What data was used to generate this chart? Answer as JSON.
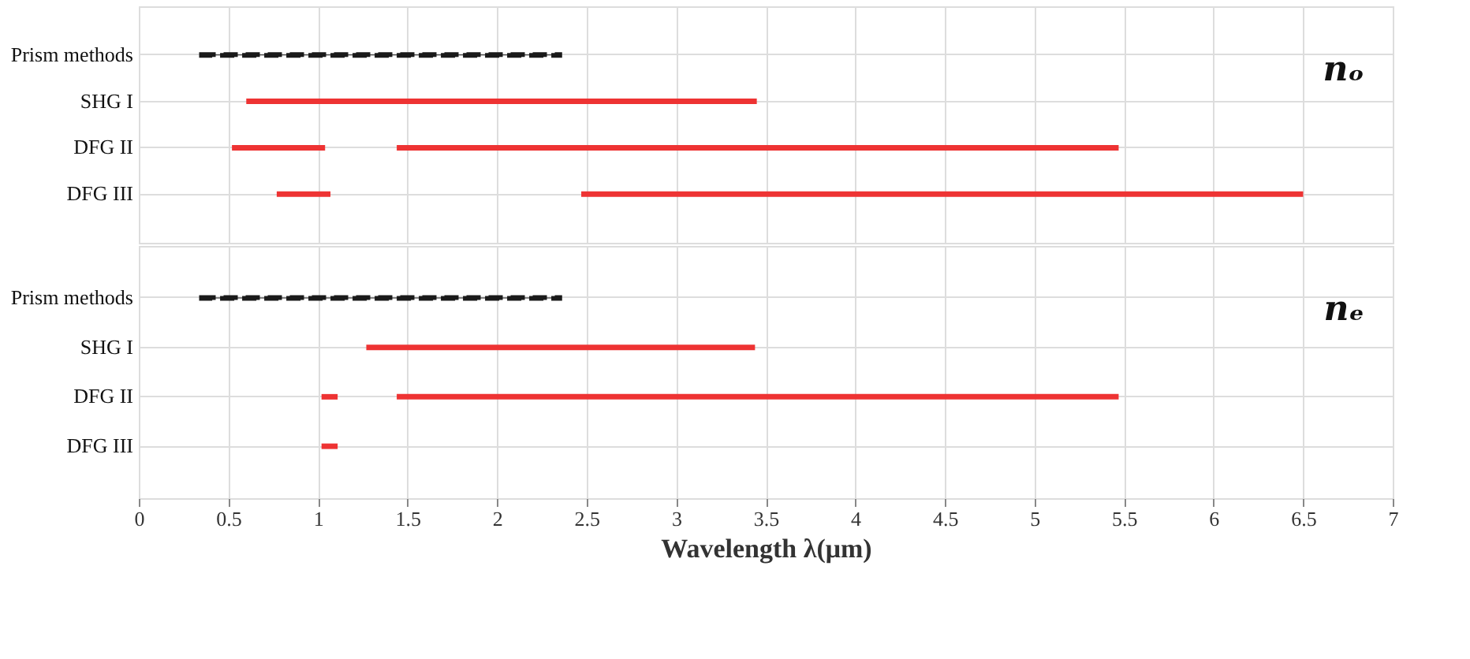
{
  "chart_data": [
    {
      "type": "bar",
      "orientation": "horizontal",
      "categories": [
        "Prism methods",
        "SHG I",
        "DFG II",
        "DFG III"
      ],
      "xlim": [
        0,
        7
      ],
      "xticks": [
        0,
        0.5,
        1,
        1.5,
        2,
        2.5,
        3,
        3.5,
        4,
        4.5,
        5,
        5.5,
        6,
        6.5,
        7
      ],
      "grid": true,
      "tick_labels": "y",
      "annotations": [
        "nₒ"
      ],
      "series": [
        {
          "color": "#1a1a1a",
          "line_style": "dashed",
          "base": [
            0.35,
            null,
            null,
            null
          ],
          "values": [
            2.0,
            null,
            null,
            null
          ]
        },
        {
          "color": "#ee3333",
          "line_style": "solid",
          "base": [
            null,
            0.6,
            0.52,
            0.77
          ],
          "values": [
            null,
            2.85,
            0.52,
            0.3
          ]
        },
        {
          "color": "#ee3333",
          "line_style": "solid",
          "base": [
            null,
            null,
            1.44,
            2.47
          ],
          "values": [
            null,
            null,
            4.03,
            4.03
          ]
        }
      ]
    },
    {
      "type": "bar",
      "orientation": "horizontal",
      "categories": [
        "Prism methods",
        "SHG I",
        "DFG II",
        "DFG III"
      ],
      "xlim": [
        0,
        7
      ],
      "xticks": [
        0,
        0.5,
        1,
        1.5,
        2,
        2.5,
        3,
        3.5,
        4,
        4.5,
        5,
        5.5,
        6,
        6.5,
        7
      ],
      "grid": true,
      "xlabel": "Wavelength λ(μm)",
      "annotations": [
        "nₑ"
      ],
      "series": [
        {
          "color": "#1a1a1a",
          "line_style": "dashed",
          "base": [
            0.35,
            null,
            null,
            null
          ],
          "values": [
            2.0,
            null,
            null,
            null
          ]
        },
        {
          "color": "#ee3333",
          "line_style": "solid",
          "base": [
            null,
            1.27,
            1.02,
            1.02
          ],
          "values": [
            null,
            2.17,
            0.09,
            0.09
          ]
        },
        {
          "color": "#ee3333",
          "line_style": "solid",
          "base": [
            null,
            null,
            1.44,
            null
          ],
          "values": [
            null,
            null,
            4.03,
            null
          ]
        }
      ]
    }
  ]
}
